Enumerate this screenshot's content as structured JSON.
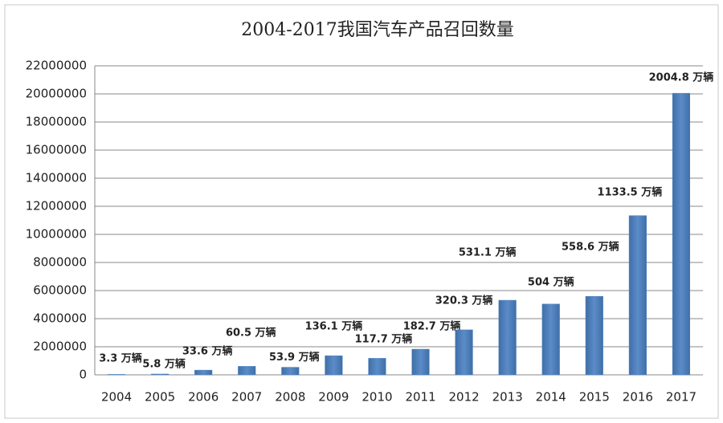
{
  "chart_data": {
    "type": "bar",
    "title": "2004-2017我国汽车产品召回数量",
    "categories": [
      "2004",
      "2005",
      "2006",
      "2007",
      "2008",
      "2009",
      "2010",
      "2011",
      "2012",
      "2013",
      "2014",
      "2015",
      "2016",
      "2017"
    ],
    "values": [
      33000,
      58000,
      336000,
      605000,
      539000,
      1361000,
      1177000,
      1827000,
      3203000,
      5311000,
      5040000,
      5586000,
      11335000,
      20048000
    ],
    "value_labels": [
      "3.3 万辆",
      "5.8 万辆",
      "33.6 万辆",
      "60.5 万辆",
      "53.9 万辆",
      "136.1 万辆",
      "117.7 万辆",
      "182.7 万辆",
      "320.3 万辆",
      "531.1 万辆",
      "504 万辆",
      "558.6 万辆",
      "1133.5 万辆",
      "2004.8 万辆"
    ],
    "color": "#4f81bd",
    "ylim": [
      0,
      22000000
    ],
    "yticks": [
      0,
      2000000,
      4000000,
      6000000,
      8000000,
      10000000,
      12000000,
      14000000,
      16000000,
      18000000,
      20000000,
      22000000
    ],
    "grid": true
  }
}
